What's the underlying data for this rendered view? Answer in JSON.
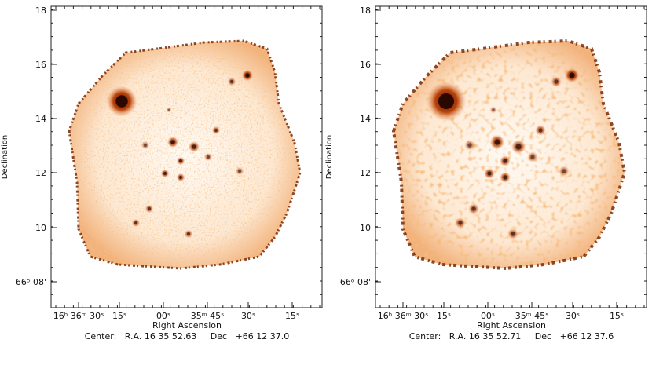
{
  "panels": [
    {
      "y_ticks": [
        "18",
        "16",
        "14",
        "12",
        "10",
        "66ᵒ 08'"
      ],
      "x_ticks": [
        "16ʰ 36ᵐ 30ˢ",
        "15ˢ",
        "00ˢ",
        "35ᵐ 45ˢ",
        "30ˢ",
        "15ˢ"
      ],
      "y_label": "Declination",
      "x_label": "Right Ascension",
      "center": "Center:   R.A. 16 35 52.63     Dec   +66 12 37.0"
    },
    {
      "y_ticks": [
        "18",
        "16",
        "14",
        "12",
        "10",
        "66ᵒ 08'"
      ],
      "x_ticks": [
        "16ʰ 36ᵐ 30ˢ",
        "15ˢ",
        "00ˢ",
        "35ᵐ 45ˢ",
        "30ˢ",
        "15ˢ"
      ],
      "y_label": "Declination",
      "x_label": "Right Ascension",
      "center": "Center:   R.A. 16 35 52.71     Dec   +66 12 37.6"
    }
  ]
}
